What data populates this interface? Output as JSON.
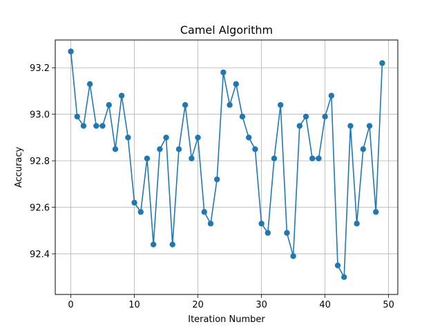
{
  "chart_data": {
    "type": "line",
    "title": "Camel Algorithm",
    "xlabel": "Iteration Number",
    "ylabel": "Accuracy",
    "xlim": [
      -2.45,
      51.45
    ],
    "ylim": [
      2.2253,
      93.3193
    ],
    "xticks": [
      0,
      10,
      20,
      30,
      40,
      50
    ],
    "yticks": [
      92.4,
      92.6,
      92.8,
      93.0,
      93.2
    ],
    "ytick_labels": [
      "92.4",
      "92.6",
      "92.8",
      "93.0",
      "93.2"
    ],
    "grid": true,
    "series": [
      {
        "color": "#1f77b4",
        "marker": "circle",
        "x": [
          0,
          1,
          2,
          3,
          4,
          5,
          6,
          7,
          8,
          9,
          10,
          11,
          12,
          13,
          14,
          15,
          16,
          17,
          18,
          19,
          20,
          21,
          22,
          23,
          24,
          25,
          26,
          27,
          28,
          29,
          30,
          31,
          32,
          33,
          34,
          35,
          36,
          37,
          38,
          39,
          40,
          41,
          42,
          43,
          44,
          45,
          46,
          47,
          48,
          49
        ],
        "y": [
          93.27,
          92.99,
          92.95,
          93.13,
          92.95,
          92.95,
          93.04,
          92.85,
          93.08,
          92.9,
          92.62,
          92.58,
          92.81,
          92.44,
          92.85,
          92.9,
          92.44,
          92.85,
          93.04,
          92.81,
          92.9,
          92.58,
          92.53,
          92.72,
          93.18,
          93.04,
          93.13,
          92.99,
          92.9,
          92.85,
          92.53,
          92.49,
          92.81,
          93.04,
          92.49,
          92.39,
          92.95,
          92.99,
          92.81,
          92.81,
          92.99,
          93.08,
          92.35,
          92.3,
          92.95,
          92.53,
          92.85,
          92.95,
          92.58,
          93.22
        ]
      }
    ]
  }
}
